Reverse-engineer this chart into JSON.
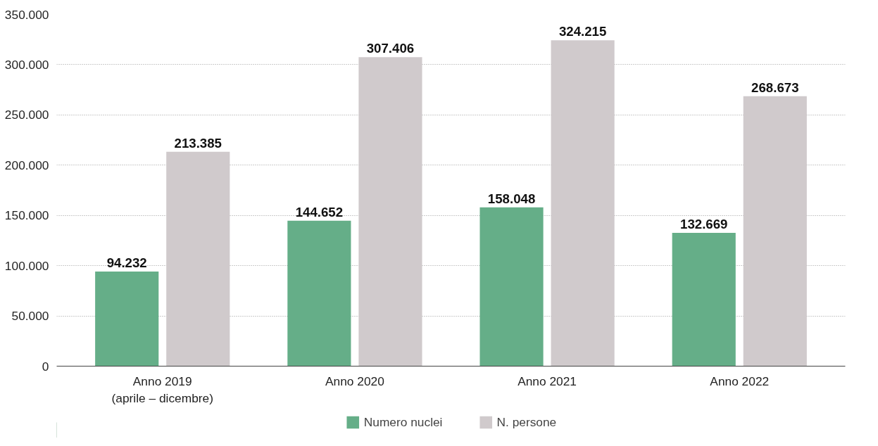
{
  "chart_data": {
    "type": "bar",
    "categories": [
      "Anno 2019\n(aprile – dicembre)",
      "Anno 2020",
      "Anno 2021",
      "Anno 2022"
    ],
    "series": [
      {
        "name": "Numero nuclei",
        "color": "#65ae88",
        "values": [
          94232,
          144652,
          158048,
          132669
        ],
        "value_labels": [
          "94.232",
          "144.652",
          "158.048",
          "132.669"
        ]
      },
      {
        "name": "N. persone",
        "color": "#d0cacc",
        "values": [
          213385,
          307406,
          324215,
          268673
        ],
        "value_labels": [
          "213.385",
          "307.406",
          "324.215",
          "268.673"
        ]
      }
    ],
    "ylim": [
      0,
      350000
    ],
    "yticks": [
      {
        "value": 0,
        "label": "0"
      },
      {
        "value": 50000,
        "label": "50.000"
      },
      {
        "value": 100000,
        "label": "100.000"
      },
      {
        "value": 150000,
        "label": "150.000"
      },
      {
        "value": 200000,
        "label": "200.000"
      },
      {
        "value": 250000,
        "label": "250.000"
      },
      {
        "value": 300000,
        "label": "300.000"
      },
      {
        "value": 350000,
        "label": "350.000"
      }
    ],
    "grid": "y",
    "legend": "bottom"
  }
}
